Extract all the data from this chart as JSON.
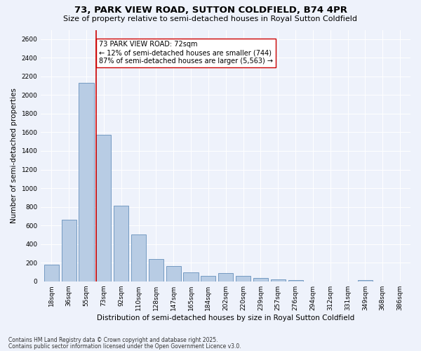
{
  "title": "73, PARK VIEW ROAD, SUTTON COLDFIELD, B74 4PR",
  "subtitle": "Size of property relative to semi-detached houses in Royal Sutton Coldfield",
  "xlabel": "Distribution of semi-detached houses by size in Royal Sutton Coldfield",
  "ylabel": "Number of semi-detached properties",
  "categories": [
    "18sqm",
    "36sqm",
    "55sqm",
    "73sqm",
    "92sqm",
    "110sqm",
    "128sqm",
    "147sqm",
    "165sqm",
    "184sqm",
    "202sqm",
    "220sqm",
    "239sqm",
    "257sqm",
    "276sqm",
    "294sqm",
    "312sqm",
    "331sqm",
    "349sqm",
    "368sqm",
    "386sqm"
  ],
  "values": [
    180,
    660,
    2130,
    1570,
    810,
    500,
    240,
    160,
    95,
    60,
    90,
    55,
    35,
    20,
    15,
    0,
    0,
    0,
    10,
    0,
    0
  ],
  "bar_color": "#b8cce4",
  "bar_edge_color": "#5080b0",
  "vline_color": "#cc0000",
  "vline_index": 3,
  "annotation_text": "73 PARK VIEW ROAD: 72sqm\n← 12% of semi-detached houses are smaller (744)\n87% of semi-detached houses are larger (5,563) →",
  "ylim": [
    0,
    2700
  ],
  "yticks": [
    0,
    200,
    400,
    600,
    800,
    1000,
    1200,
    1400,
    1600,
    1800,
    2000,
    2200,
    2400,
    2600
  ],
  "background_color": "#eef2fb",
  "grid_color": "#ffffff",
  "footer1": "Contains HM Land Registry data © Crown copyright and database right 2025.",
  "footer2": "Contains public sector information licensed under the Open Government Licence v3.0.",
  "title_fontsize": 9.5,
  "subtitle_fontsize": 8,
  "axis_label_fontsize": 7.5,
  "tick_fontsize": 6.5,
  "annotation_fontsize": 7,
  "footer_fontsize": 5.5
}
